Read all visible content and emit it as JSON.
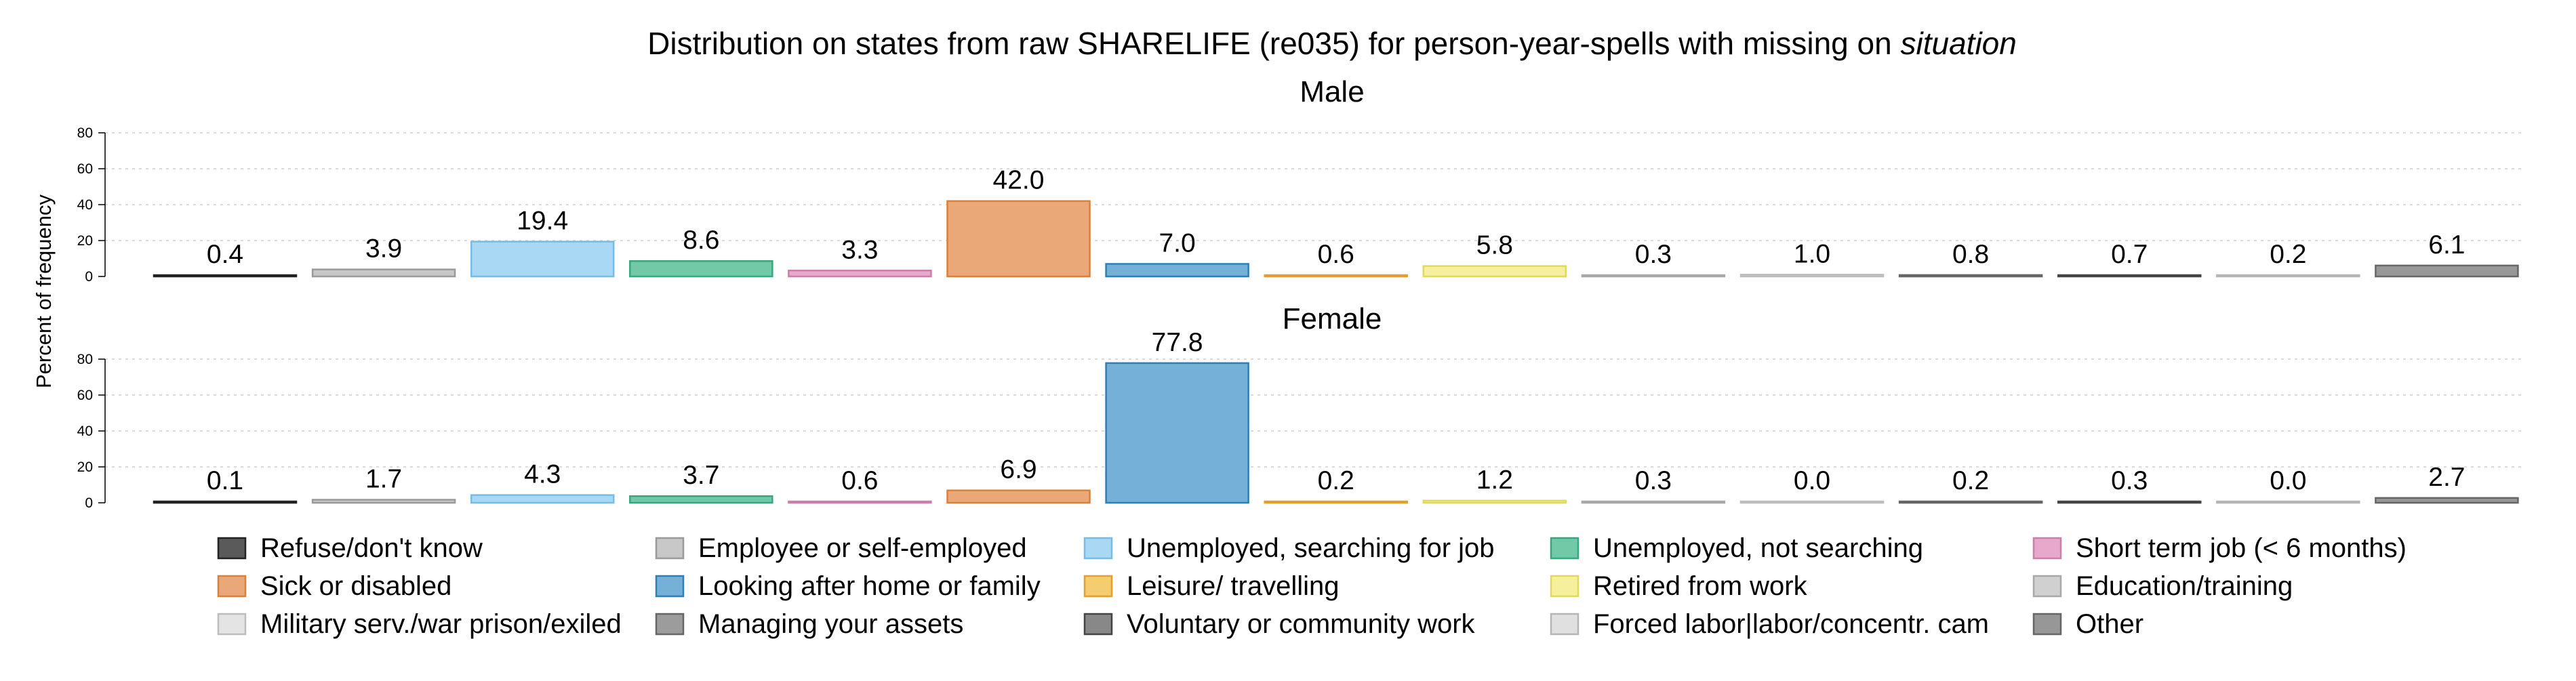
{
  "chart_data": {
    "type": "bar",
    "title": "Distribution on states from raw SHARELIFE (re035) for person-year-spells with missing on",
    "title_italic": "situation",
    "ylabel": "Percent of frequency",
    "ylim": [
      0,
      80
    ],
    "yticks": [
      0,
      20,
      40,
      60,
      80
    ],
    "grid": true,
    "legend_position": "bottom",
    "categories": [
      "Refuse/don't know",
      "Employee or self-employed",
      "Unemployed, searching for job",
      "Unemployed, not searching",
      "Short term job (< 6 months)",
      "Sick or disabled",
      "Looking after home or family",
      "Leisure/ travelling",
      "Retired from work",
      "Education/training",
      "Military serv./war prison/exiled",
      "Managing your assets",
      "Voluntary or community work",
      "Forced labor|labor/concentr. cam",
      "Other"
    ],
    "colors": [
      "#5a5a5a",
      "#c8c8c8",
      "#a8d8f4",
      "#72c9a8",
      "#e8a8cc",
      "#eaa878",
      "#74b0d8",
      "#f6cc70",
      "#f6f09c",
      "#d0d0d0",
      "#e4e4e4",
      "#9c9c9c",
      "#888888",
      "#e0e0e0",
      "#979797"
    ],
    "edge_colors": [
      "#222222",
      "#9a9a9a",
      "#78bce4",
      "#3aa67e",
      "#c880a8",
      "#d7813f",
      "#2f7fb5",
      "#e0a030",
      "#e0d860",
      "#a8a8a8",
      "#bdbdbd",
      "#666666",
      "#444444",
      "#b5b5b5",
      "#666666"
    ],
    "panels": [
      {
        "title": "Male",
        "values": [
          0.4,
          3.9,
          19.4,
          8.6,
          3.3,
          42.0,
          7.0,
          0.6,
          5.8,
          0.3,
          1.0,
          0.8,
          0.7,
          0.2,
          6.1
        ],
        "labels": [
          "0.4",
          "3.9",
          "19.4",
          "8.6",
          "3.3",
          "42.0",
          "7.0",
          "0.6",
          "5.8",
          "0.3",
          "1.0",
          "0.8",
          "0.7",
          "0.2",
          "6.1"
        ]
      },
      {
        "title": "Female",
        "values": [
          0.1,
          1.7,
          4.3,
          3.7,
          0.6,
          6.9,
          77.8,
          0.2,
          1.2,
          0.3,
          0.0,
          0.2,
          0.3,
          0.0,
          2.7
        ],
        "labels": [
          "0.1",
          "1.7",
          "4.3",
          "3.7",
          "0.6",
          "6.9",
          "77.8",
          "0.2",
          "1.2",
          "0.3",
          "0.0",
          "0.2",
          "0.3",
          "0.0",
          "2.7"
        ]
      }
    ]
  }
}
